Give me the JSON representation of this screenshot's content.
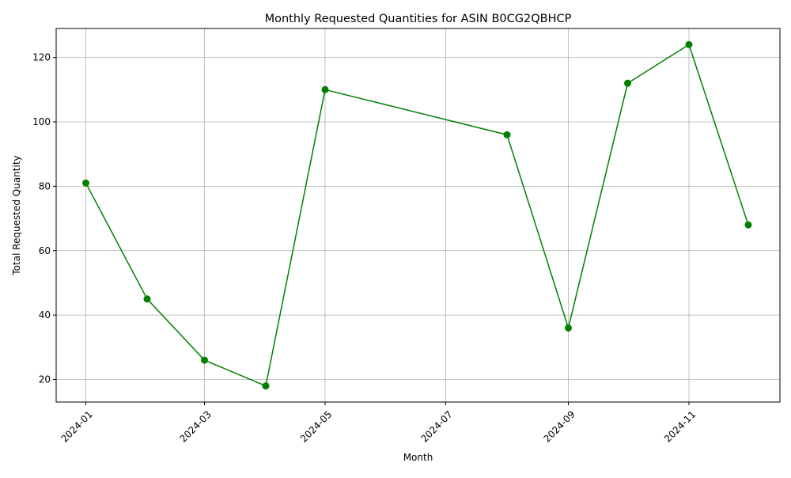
{
  "chart_data": {
    "type": "line",
    "title": "Monthly Requested Quantities for ASIN B0CG2QBHCP",
    "xlabel": "Month",
    "ylabel": "Total Requested Quantity",
    "x": [
      "2024-01",
      "2024-02",
      "2024-03",
      "2024-04",
      "2024-05",
      "2024-08",
      "2024-09",
      "2024-10",
      "2024-11",
      "2024-12"
    ],
    "series": [
      {
        "values": [
          81,
          45,
          26,
          18,
          110,
          96,
          36,
          112,
          124,
          68
        ],
        "color": "#008000",
        "marker": "circle"
      }
    ],
    "x_ticks": [
      "2024-01",
      "2024-03",
      "2024-05",
      "2024-07",
      "2024-09",
      "2024-11"
    ],
    "y_ticks": [
      20,
      40,
      60,
      80,
      100,
      120
    ],
    "ylim": [
      13,
      129
    ],
    "xlim": [
      "2023-12-17",
      "2024-12-17"
    ],
    "grid": true,
    "x_tick_rotation": "45 degrees"
  }
}
